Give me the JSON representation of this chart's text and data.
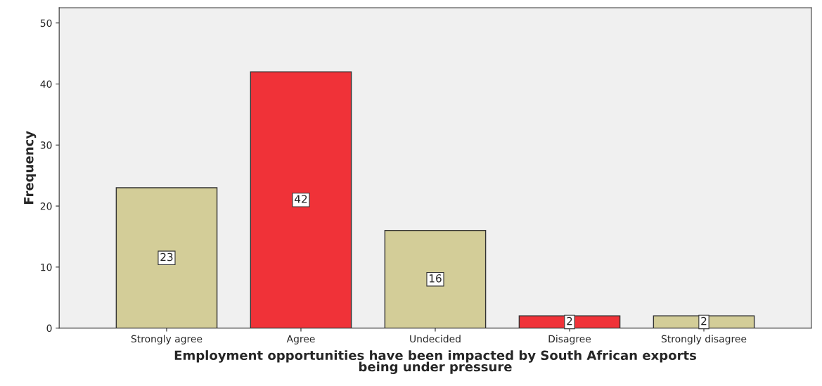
{
  "chart_data": {
    "type": "bar",
    "xlabel": "Employment opportunities have been impacted by South African exports\nbeing under pressure",
    "ylabel": "Frequency",
    "categories": [
      "Strongly agree",
      "Agree",
      "Undecided",
      "Disagree",
      "Strongly disagree"
    ],
    "values": [
      23,
      42,
      16,
      2,
      2
    ],
    "colors": [
      "#d3cd98",
      "#f03238",
      "#d3cd98",
      "#f03238",
      "#d3cd98"
    ],
    "ylim": [
      0,
      52.5
    ],
    "yticks": [
      0,
      10,
      20,
      30,
      40,
      50
    ],
    "data_labels": true,
    "grid": false,
    "legend": false
  }
}
